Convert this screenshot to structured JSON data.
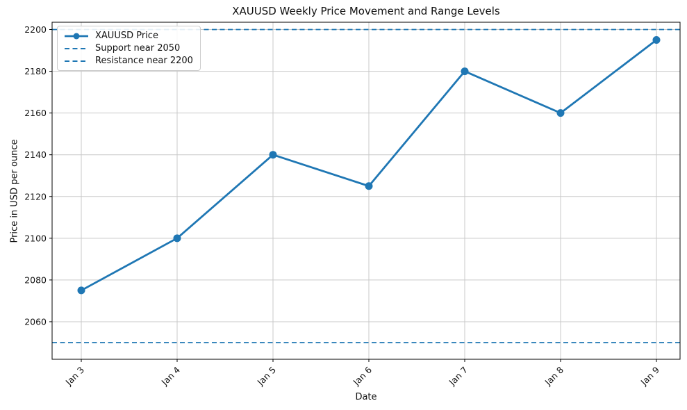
{
  "chart_data": {
    "type": "line",
    "title": "XAUUSD Weekly Price Movement and Range Levels",
    "xlabel": "Date",
    "ylabel": "Price in USD per ounce",
    "categories": [
      "Jan 3",
      "Jan 4",
      "Jan 5",
      "Jan 6",
      "Jan 7",
      "Jan 8",
      "Jan 9"
    ],
    "series": [
      {
        "name": "XAUUSD Price",
        "type": "line",
        "style": "solid",
        "marker": "circle",
        "values": [
          2075,
          2100,
          2140,
          2125,
          2180,
          2160,
          2195
        ],
        "color": "#1f77b4"
      },
      {
        "name": "Support near 2050",
        "type": "hline",
        "style": "dashed",
        "value": 2050,
        "color": "#1f77b4"
      },
      {
        "name": "Resistance near 2200",
        "type": "hline",
        "style": "dashed",
        "value": 2200,
        "color": "#1f77b4"
      }
    ],
    "legend": [
      "XAUUSD Price",
      "Support near 2050",
      "Resistance near 2200"
    ],
    "legend_position": "upper left",
    "yticks": [
      2060,
      2080,
      2100,
      2120,
      2140,
      2160,
      2180,
      2200
    ],
    "ylim": [
      2042,
      2203.5
    ],
    "grid": true,
    "line_color": "#1f77b4",
    "grid_color": "#c9c9c9",
    "spine_color": "#000000"
  }
}
